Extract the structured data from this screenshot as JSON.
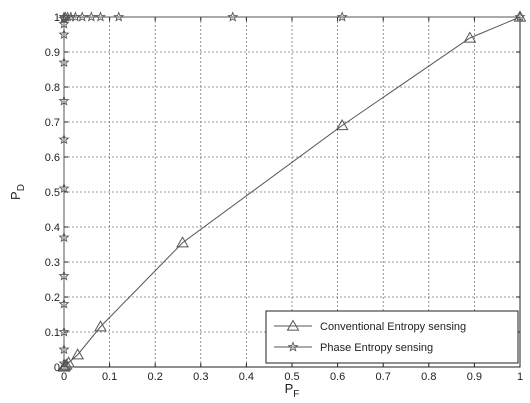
{
  "chart_data": {
    "type": "line",
    "xlabel": "P",
    "xlabel_sub": "F",
    "ylabel": "P",
    "ylabel_sub": "D",
    "xlim": [
      0,
      1
    ],
    "ylim": [
      0,
      1
    ],
    "xticks": [
      0,
      0.1,
      0.2,
      0.3,
      0.4,
      0.5,
      0.6,
      0.7,
      0.8,
      0.9,
      1
    ],
    "xtick_labels": [
      "0",
      "0.1",
      "0.2",
      "0.3",
      "0.4",
      "0.5",
      "0.6",
      "0.7",
      "0.8",
      "0.9",
      "1"
    ],
    "yticks": [
      0,
      0.1,
      0.2,
      0.3,
      0.4,
      0.5,
      0.6,
      0.7,
      0.8,
      0.9,
      1
    ],
    "ytick_labels": [
      "0",
      "0.1",
      "0.2",
      "0.3",
      "0.4",
      "0.5",
      "0.6",
      "0.7",
      "0.8",
      "0.9",
      "1"
    ],
    "grid": true,
    "legend_position": "bottom-right",
    "series": [
      {
        "name": "Conventional Entropy sensing",
        "marker": "triangle",
        "color": "#555555",
        "x": [
          0,
          0.002,
          0.005,
          0.01,
          0.03,
          0.08,
          0.26,
          0.61,
          0.89,
          1.0
        ],
        "y": [
          0,
          0.003,
          0.006,
          0.012,
          0.035,
          0.115,
          0.355,
          0.69,
          0.94,
          1.0
        ]
      },
      {
        "name": "Phase Entropy sensing",
        "marker": "star",
        "color": "#555555",
        "x": [
          0,
          0,
          0,
          0,
          0,
          0,
          0,
          0,
          0,
          0,
          0,
          0,
          0,
          0,
          0.003,
          0.008,
          0.015,
          0.025,
          0.04,
          0.06,
          0.08,
          0.12,
          0.37,
          0.61,
          1.0
        ],
        "y": [
          0.01,
          0.05,
          0.1,
          0.18,
          0.26,
          0.37,
          0.51,
          0.65,
          0.76,
          0.87,
          0.95,
          0.98,
          0.995,
          1.0,
          1.0,
          1.0,
          1.0,
          1.0,
          1.0,
          1.0,
          1.0,
          1.0,
          1.0,
          1.0,
          1.0
        ]
      }
    ]
  }
}
